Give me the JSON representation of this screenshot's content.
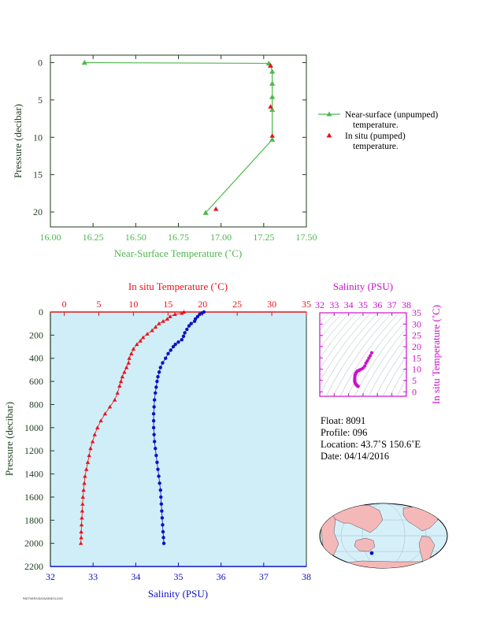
{
  "colors": {
    "green": "#4db84d",
    "red": "#e8131a",
    "blue": "#0a10c8",
    "magenta": "#cc11cc",
    "axis_dark": "#1f3d1f",
    "panel_bg": "#cfeef8",
    "land": "#f4b8b8",
    "ocean": "#d6f0fa"
  },
  "chart_data": [
    {
      "type": "line",
      "xlabel": "Near-Surface Temperature (˚C)",
      "ylabel": "Pressure (decibar)",
      "xlim": [
        16.0,
        17.5
      ],
      "ylim": [
        22,
        -1
      ],
      "x_ticks": [
        16.0,
        16.25,
        16.5,
        16.75,
        17.0,
        17.25,
        17.5
      ],
      "x_tick_labels": [
        "16.00",
        "16.25",
        "16.50",
        "16.75",
        "17.00",
        "17.25",
        "17.50"
      ],
      "y_ticks": [
        0,
        5,
        10,
        15,
        20
      ],
      "y_tick_labels": [
        "0",
        "5",
        "10",
        "15",
        "20"
      ],
      "series": [
        {
          "name": "Near-surface (unpumped) temperature.",
          "marker": "triangle",
          "points": [
            [
              16.2,
              0.0
            ],
            [
              17.28,
              0.1
            ],
            [
              17.29,
              0.4
            ],
            [
              17.3,
              1.2
            ],
            [
              17.3,
              2.8
            ],
            [
              17.3,
              4.6
            ],
            [
              17.3,
              6.3
            ],
            [
              17.3,
              10.3
            ],
            [
              16.91,
              20.1
            ]
          ]
        },
        {
          "name": "In situ (pumped) temperature.",
          "marker": "triangle",
          "points": [
            [
              17.29,
              0.4
            ],
            [
              17.29,
              5.9
            ],
            [
              17.3,
              9.8
            ],
            [
              16.97,
              19.6
            ]
          ]
        }
      ],
      "legend": "right"
    },
    {
      "type": "line",
      "top_axis_label": "In situ Temperature (˚C)",
      "bottom_axis_label": "Salinity (PSU)",
      "ylabel": "Pressure (decibar)",
      "temperature_lim": [
        -2,
        35
      ],
      "temperature_ticks": [
        0,
        5,
        10,
        15,
        20,
        25,
        30,
        35
      ],
      "salinity_lim": [
        32,
        38
      ],
      "salinity_ticks": [
        32,
        33,
        34,
        35,
        36,
        37,
        38
      ],
      "pressure_lim": [
        2200,
        0
      ],
      "pressure_ticks": [
        0,
        200,
        400,
        600,
        800,
        1000,
        1200,
        1400,
        1600,
        1800,
        2000,
        2200
      ],
      "series": [
        {
          "name": "In situ Temperature",
          "marker": "triangle",
          "points": [
            [
              17.3,
              0
            ],
            [
              17.0,
              10
            ],
            [
              16.0,
              20
            ],
            [
              15.3,
              40
            ],
            [
              14.9,
              60
            ],
            [
              14.3,
              80
            ],
            [
              13.7,
              100
            ],
            [
              13.2,
              130
            ],
            [
              12.7,
              160
            ],
            [
              12.0,
              190
            ],
            [
              11.4,
              220
            ],
            [
              11.0,
              250
            ],
            [
              10.5,
              280
            ],
            [
              10.0,
              320
            ],
            [
              9.7,
              360
            ],
            [
              9.4,
              400
            ],
            [
              9.3,
              440
            ],
            [
              9.0,
              480
            ],
            [
              8.7,
              520
            ],
            [
              8.4,
              560
            ],
            [
              8.2,
              600
            ],
            [
              8.0,
              640
            ],
            [
              7.7,
              700
            ],
            [
              7.3,
              760
            ],
            [
              6.6,
              820
            ],
            [
              5.9,
              880
            ],
            [
              5.3,
              940
            ],
            [
              4.8,
              1000
            ],
            [
              4.4,
              1060
            ],
            [
              4.1,
              1120
            ],
            [
              3.8,
              1180
            ],
            [
              3.6,
              1240
            ],
            [
              3.4,
              1300
            ],
            [
              3.2,
              1360
            ],
            [
              3.0,
              1420
            ],
            [
              2.9,
              1480
            ],
            [
              2.8,
              1540
            ],
            [
              2.7,
              1600
            ],
            [
              2.65,
              1660
            ],
            [
              2.6,
              1720
            ],
            [
              2.55,
              1780
            ],
            [
              2.5,
              1840
            ],
            [
              2.45,
              1900
            ],
            [
              2.45,
              1950
            ],
            [
              2.4,
              2000
            ]
          ]
        },
        {
          "name": "Salinity",
          "marker": "circle",
          "points": [
            [
              35.6,
              0
            ],
            [
              35.55,
              10
            ],
            [
              35.5,
              20
            ],
            [
              35.45,
              40
            ],
            [
              35.4,
              60
            ],
            [
              35.38,
              80
            ],
            [
              35.3,
              100
            ],
            [
              35.25,
              120
            ],
            [
              35.2,
              150
            ],
            [
              35.15,
              180
            ],
            [
              35.12,
              210
            ],
            [
              35.08,
              240
            ],
            [
              35.0,
              260
            ],
            [
              34.93,
              280
            ],
            [
              34.88,
              300
            ],
            [
              34.82,
              330
            ],
            [
              34.76,
              360
            ],
            [
              34.7,
              400
            ],
            [
              34.63,
              440
            ],
            [
              34.58,
              480
            ],
            [
              34.55,
              520
            ],
            [
              34.52,
              560
            ],
            [
              34.5,
              600
            ],
            [
              34.48,
              650
            ],
            [
              34.46,
              700
            ],
            [
              34.44,
              760
            ],
            [
              34.43,
              820
            ],
            [
              34.42,
              880
            ],
            [
              34.42,
              940
            ],
            [
              34.42,
              1000
            ],
            [
              34.43,
              1060
            ],
            [
              34.44,
              1120
            ],
            [
              34.46,
              1180
            ],
            [
              34.48,
              1240
            ],
            [
              34.5,
              1300
            ],
            [
              34.52,
              1360
            ],
            [
              34.54,
              1420
            ],
            [
              34.56,
              1480
            ],
            [
              34.58,
              1540
            ],
            [
              34.59,
              1600
            ],
            [
              34.6,
              1660
            ],
            [
              34.61,
              1720
            ],
            [
              34.62,
              1780
            ],
            [
              34.63,
              1840
            ],
            [
              34.64,
              1900
            ],
            [
              34.65,
              1950
            ],
            [
              34.66,
              2000
            ]
          ]
        }
      ]
    },
    {
      "type": "scatter",
      "title": "Salinity (PSU)",
      "ylabel": "In situ Temperature (˚C)",
      "xlim": [
        32,
        38
      ],
      "x_ticks": [
        32,
        33,
        34,
        35,
        36,
        37,
        38
      ],
      "ylim": [
        -2,
        35
      ],
      "y_ticks": [
        0,
        5,
        10,
        15,
        20,
        25,
        30,
        35
      ],
      "points": [
        [
          35.6,
          17.3
        ],
        [
          35.5,
          16.0
        ],
        [
          35.4,
          14.9
        ],
        [
          35.3,
          13.7
        ],
        [
          35.2,
          12.7
        ],
        [
          35.12,
          11.4
        ],
        [
          35.0,
          10.5
        ],
        [
          34.88,
          10.0
        ],
        [
          34.76,
          9.7
        ],
        [
          34.7,
          9.4
        ],
        [
          34.63,
          9.3
        ],
        [
          34.58,
          9.0
        ],
        [
          34.55,
          8.7
        ],
        [
          34.52,
          8.4
        ],
        [
          34.5,
          8.2
        ],
        [
          34.48,
          8.0
        ],
        [
          34.46,
          7.7
        ],
        [
          34.44,
          7.3
        ],
        [
          34.43,
          6.6
        ],
        [
          34.42,
          5.9
        ],
        [
          34.42,
          5.3
        ],
        [
          34.42,
          4.8
        ],
        [
          34.43,
          4.4
        ],
        [
          34.44,
          4.1
        ],
        [
          34.46,
          3.8
        ],
        [
          34.48,
          3.6
        ],
        [
          34.5,
          3.4
        ],
        [
          34.52,
          3.2
        ],
        [
          34.54,
          3.0
        ],
        [
          34.56,
          2.9
        ],
        [
          34.58,
          2.8
        ],
        [
          34.6,
          2.65
        ],
        [
          34.62,
          2.55
        ],
        [
          34.64,
          2.45
        ],
        [
          34.66,
          2.4
        ]
      ]
    }
  ],
  "float_info": {
    "float": "Float:  8091",
    "profile": "Profile:  096",
    "location": "Location:  43.7˚S  150.6˚E",
    "date": "Date:  04/14/2016"
  },
  "map": {
    "marker_color": "#0a10c8"
  },
  "footer": {
    "tiny_text": "PARTNERS/DATA/DEMO/LOGS"
  }
}
